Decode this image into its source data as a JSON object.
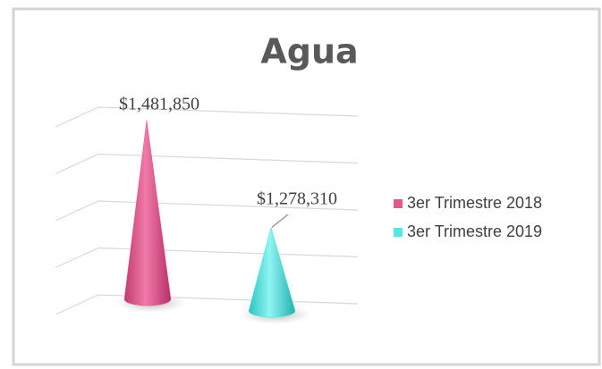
{
  "chart_data": {
    "type": "cone",
    "title": "Agua",
    "series": [
      {
        "name": "3er Trimestre 2018",
        "color": "#e8568e",
        "values": [
          1481850
        ],
        "value_labels": [
          "$1,481,850"
        ]
      },
      {
        "name": "3er Trimestre 2019",
        "color": "#52e8e6",
        "values": [
          1278310
        ],
        "value_labels": [
          "$1,278,310"
        ]
      }
    ],
    "ylim": [
      1100000,
      1500000
    ],
    "yticks": [
      1100000,
      1200000,
      1300000,
      1400000,
      1500000
    ],
    "grid": true,
    "legend": "right"
  }
}
